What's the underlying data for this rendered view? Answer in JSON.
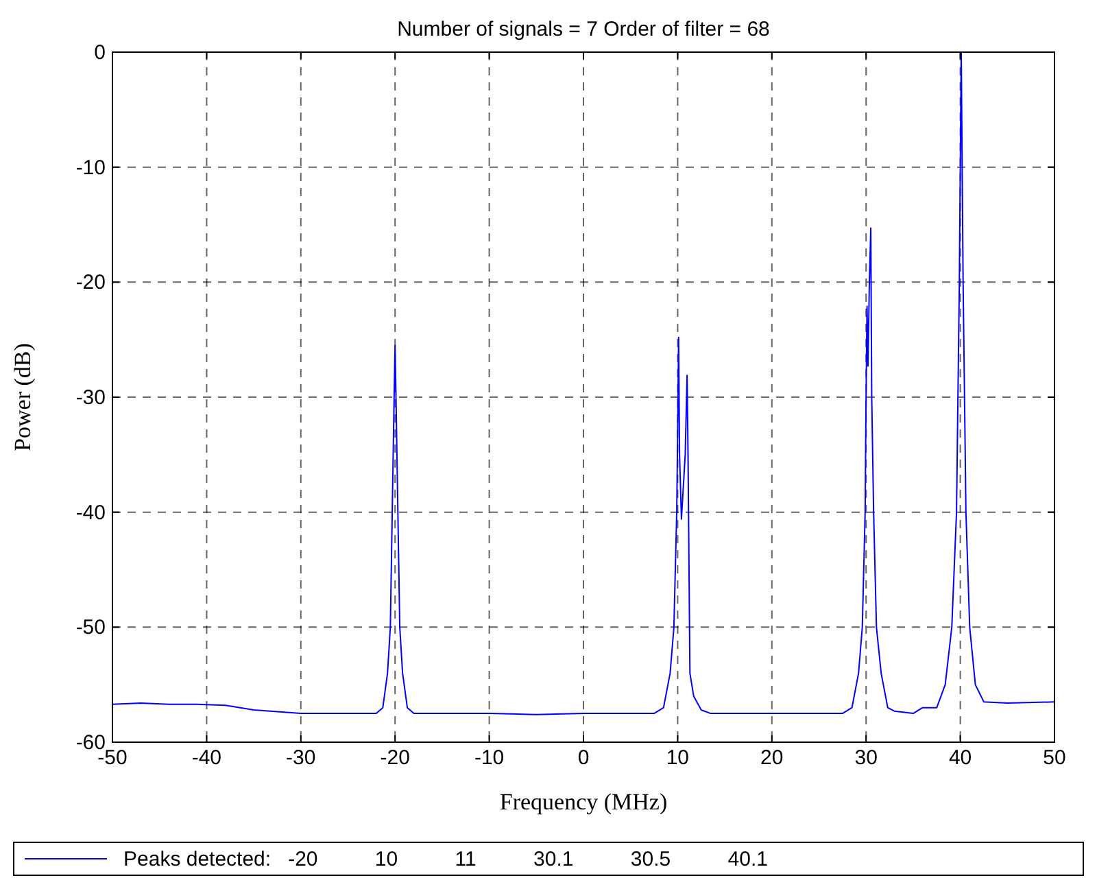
{
  "chart_data": {
    "type": "line",
    "title": "Number of signals = 7 Order of filter = 68",
    "xlabel": "Frequency (MHz)",
    "ylabel": "Power (dB)",
    "xlim": [
      -50,
      50
    ],
    "xticks": [
      -50,
      -40,
      -30,
      -20,
      -10,
      0,
      10,
      20,
      30,
      40,
      50
    ],
    "ylim": [
      -60,
      0
    ],
    "yticks": [
      -60,
      -50,
      -40,
      -30,
      -20,
      -10,
      0
    ],
    "grid": true,
    "legend": "bottom",
    "line_style": "solid",
    "series": [
      {
        "name": "Peaks detected:   -20          10          11          30.1          30.5          40.1",
        "color": "#0000ff",
        "x": [
          -50,
          -47,
          -44,
          -41,
          -38,
          -35,
          -30,
          -25,
          -22,
          -21.3,
          -20.8,
          -20.5,
          -20.3,
          -20.1,
          -20,
          -19.9,
          -19.7,
          -19.5,
          -19.2,
          -18.7,
          -18,
          -10,
          -5,
          0,
          5,
          7.5,
          8.5,
          9.2,
          9.6,
          9.9,
          10,
          10.1,
          10.2,
          10.4,
          10.8,
          11,
          11.1,
          11.3,
          11.7,
          12.5,
          13.5,
          20,
          27.5,
          28.5,
          29.2,
          29.6,
          29.9,
          30,
          30.1,
          30.2,
          30.35,
          30.5,
          30.6,
          30.8,
          31.1,
          31.6,
          32.3,
          33,
          35,
          36,
          37.5,
          38.4,
          39.1,
          39.6,
          39.9,
          40.1,
          40.3,
          40.6,
          41,
          41.6,
          42.5,
          45,
          50
        ],
        "values": [
          -56.7,
          -56.6,
          -56.7,
          -56.7,
          -56.8,
          -57.2,
          -57.5,
          -57.5,
          -57.5,
          -57,
          -54,
          -50,
          -40,
          -30,
          -25.5,
          -30,
          -40,
          -50,
          -54,
          -57,
          -57.5,
          -57.5,
          -57.6,
          -57.5,
          -57.5,
          -57.5,
          -57,
          -54,
          -50,
          -40,
          -33,
          -24.8,
          -35,
          -40.6,
          -35,
          -28.1,
          -35,
          -54,
          -56,
          -57.2,
          -57.5,
          -57.5,
          -57.5,
          -57,
          -54,
          -50,
          -40,
          -30,
          -22.1,
          -27.3,
          -20,
          -15.3,
          -30,
          -40,
          -50,
          -54,
          -57,
          -57.3,
          -57.5,
          -57,
          -57,
          -55,
          -50,
          -40,
          -20,
          0,
          -20,
          -40,
          -50,
          -55,
          -56.5,
          -56.6,
          -56.5
        ]
      }
    ]
  }
}
